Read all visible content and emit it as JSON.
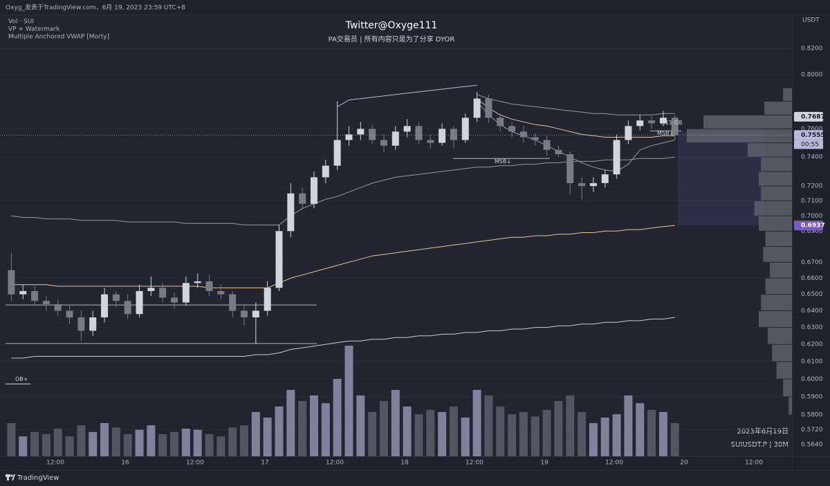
{
  "header": {
    "publisher": "Oxyg_发表于TradingView.com，6月 19, 2023 23:59 UTC+8",
    "currency": "USDT"
  },
  "indicators": [
    "Vol · SUI",
    "VP + Watermark",
    "Multiple Anchored VWAP [Morty]"
  ],
  "watermark": {
    "title": "Twitter@Oxyge111",
    "subtitle": "PA交易员  |  所有内容只是为了分享 DYOR"
  },
  "footer": {
    "brand": "TradingView"
  },
  "chart_data": {
    "type": "candlestick",
    "date": "2023年6月19日",
    "symbol": "SUIUSDT.P  |  30M",
    "log_scale": true,
    "ylim": [
      0.5578,
      0.8472
    ],
    "yticks": [
      {
        "value": 0.82,
        "label": "0.8200"
      },
      {
        "value": 0.8,
        "label": "0.8000"
      },
      {
        "value": 0.76,
        "label": "0.7600"
      },
      {
        "value": 0.74,
        "label": "0.7400"
      },
      {
        "value": 0.72,
        "label": "0.7200"
      },
      {
        "value": 0.71,
        "label": "0.7100"
      },
      {
        "value": 0.7,
        "label": "0.7000"
      },
      {
        "value": 0.69,
        "label": "0.6900"
      },
      {
        "value": 0.67,
        "label": "0.6700"
      },
      {
        "value": 0.66,
        "label": "0.6600"
      },
      {
        "value": 0.65,
        "label": "0.6500"
      },
      {
        "value": 0.64,
        "label": "0.6400"
      },
      {
        "value": 0.63,
        "label": "0.6300"
      },
      {
        "value": 0.62,
        "label": "0.6200"
      },
      {
        "value": 0.61,
        "label": "0.6100"
      },
      {
        "value": 0.6,
        "label": "0.6000"
      },
      {
        "value": 0.59,
        "label": "0.5900"
      },
      {
        "value": 0.58,
        "label": "0.5800"
      },
      {
        "value": 0.572,
        "label": "0.5720"
      },
      {
        "value": 0.564,
        "label": "0.5640"
      }
    ],
    "time_labels": [
      "12:00",
      "16",
      "12:00",
      "17",
      "12:00",
      "18",
      "12:00",
      "19",
      "12:00",
      "20",
      "12:00"
    ],
    "candles": {
      "up_color": "#d1d4dc",
      "down_color": "#787b86",
      "open": [
        0.665,
        0.65,
        0.652,
        0.646,
        0.644,
        0.64,
        0.636,
        0.628,
        0.636,
        0.65,
        0.646,
        0.638,
        0.652,
        0.654,
        0.648,
        0.645,
        0.657,
        0.658,
        0.652,
        0.65,
        0.64,
        0.636,
        0.64,
        0.654,
        0.69,
        0.715,
        0.708,
        0.726,
        0.734,
        0.752,
        0.756,
        0.76,
        0.752,
        0.748,
        0.758,
        0.762,
        0.752,
        0.75,
        0.76,
        0.752,
        0.768,
        0.782,
        0.768,
        0.762,
        0.758,
        0.754,
        0.752,
        0.745,
        0.742,
        0.722,
        0.72,
        0.722,
        0.728,
        0.752,
        0.762,
        0.766,
        0.764,
        0.768
      ],
      "high": [
        0.676,
        0.656,
        0.656,
        0.649,
        0.647,
        0.643,
        0.64,
        0.64,
        0.654,
        0.652,
        0.65,
        0.656,
        0.661,
        0.657,
        0.651,
        0.661,
        0.663,
        0.662,
        0.656,
        0.652,
        0.644,
        0.645,
        0.658,
        0.694,
        0.722,
        0.719,
        0.73,
        0.738,
        0.78,
        0.762,
        0.765,
        0.763,
        0.756,
        0.762,
        0.767,
        0.765,
        0.756,
        0.764,
        0.762,
        0.771,
        0.787,
        0.785,
        0.771,
        0.765,
        0.762,
        0.757,
        0.755,
        0.748,
        0.744,
        0.726,
        0.726,
        0.731,
        0.756,
        0.766,
        0.77,
        0.769,
        0.773,
        0.77
      ],
      "low": [
        0.646,
        0.647,
        0.643,
        0.64,
        0.637,
        0.632,
        0.622,
        0.625,
        0.633,
        0.642,
        0.635,
        0.636,
        0.649,
        0.645,
        0.641,
        0.643,
        0.654,
        0.649,
        0.647,
        0.636,
        0.631,
        0.6205,
        0.637,
        0.652,
        0.686,
        0.704,
        0.705,
        0.722,
        0.731,
        0.748,
        0.752,
        0.749,
        0.743,
        0.745,
        0.754,
        0.749,
        0.746,
        0.748,
        0.746,
        0.75,
        0.765,
        0.764,
        0.758,
        0.754,
        0.75,
        0.748,
        0.741,
        0.74,
        0.714,
        0.711,
        0.716,
        0.719,
        0.725,
        0.749,
        0.759,
        0.76,
        0.762,
        0.752
      ],
      "close": [
        0.65,
        0.652,
        0.646,
        0.644,
        0.64,
        0.636,
        0.628,
        0.636,
        0.65,
        0.646,
        0.638,
        0.652,
        0.654,
        0.648,
        0.645,
        0.657,
        0.658,
        0.652,
        0.65,
        0.64,
        0.636,
        0.64,
        0.654,
        0.69,
        0.715,
        0.708,
        0.726,
        0.734,
        0.752,
        0.756,
        0.76,
        0.752,
        0.748,
        0.758,
        0.762,
        0.752,
        0.75,
        0.76,
        0.752,
        0.768,
        0.782,
        0.768,
        0.762,
        0.758,
        0.754,
        0.752,
        0.745,
        0.742,
        0.722,
        0.72,
        0.722,
        0.728,
        0.752,
        0.762,
        0.766,
        0.764,
        0.768,
        0.7555
      ]
    },
    "volume": {
      "up_color": "#8a8da6",
      "down_color": "#585b68",
      "values": [
        30,
        18,
        22,
        20,
        25,
        18,
        28,
        22,
        30,
        26,
        20,
        24,
        28,
        20,
        22,
        25,
        24,
        20,
        18,
        26,
        28,
        40,
        35,
        45,
        60,
        50,
        55,
        48,
        70,
        100,
        55,
        40,
        50,
        60,
        45,
        38,
        42,
        40,
        45,
        35,
        60,
        55,
        45,
        38,
        40,
        36,
        42,
        50,
        55,
        40,
        30,
        35,
        38,
        55,
        48,
        42,
        40,
        30
      ]
    },
    "lines": [
      {
        "color": "#c9cbd6",
        "values": [
          0.612,
          0.612,
          0.613,
          0.613,
          0.613,
          0.613,
          0.613,
          0.613,
          0.613,
          0.613,
          0.613,
          0.613,
          0.613,
          0.613,
          0.613,
          0.613,
          0.613,
          0.613,
          0.613,
          0.613,
          0.613,
          0.614,
          0.614,
          0.615,
          0.617,
          0.618,
          0.619,
          0.62,
          0.621,
          0.622,
          0.622,
          0.623,
          0.623,
          0.624,
          0.624,
          0.625,
          0.625,
          0.626,
          0.626,
          0.627,
          0.627,
          0.628,
          0.628,
          0.629,
          0.629,
          0.63,
          0.63,
          0.631,
          0.631,
          0.632,
          0.632,
          0.633,
          0.633,
          0.634,
          0.634,
          0.635,
          0.635,
          0.636
        ]
      },
      {
        "color": "#9598a1",
        "values": [
          0.7,
          0.699,
          0.699,
          0.698,
          0.698,
          0.698,
          0.697,
          0.697,
          0.697,
          0.697,
          0.696,
          0.696,
          0.696,
          0.696,
          0.696,
          0.695,
          0.695,
          0.695,
          0.695,
          0.695,
          0.694,
          0.694,
          0.694,
          0.694,
          0.7,
          0.705,
          0.708,
          0.711,
          0.713,
          0.716,
          0.719,
          0.722,
          0.724,
          0.726,
          0.727,
          0.728,
          0.729,
          0.73,
          0.731,
          0.732,
          0.733,
          0.733,
          0.734,
          0.734,
          0.735,
          0.735,
          0.736,
          0.736,
          0.737,
          0.737,
          0.737,
          0.738,
          0.738,
          0.738,
          0.739,
          0.739,
          0.739,
          0.74
        ]
      },
      {
        "color": "#e8c49a",
        "values": [
          0.656,
          0.656,
          0.656,
          0.656,
          0.655,
          0.655,
          0.655,
          0.655,
          0.655,
          0.655,
          0.655,
          0.655,
          0.655,
          0.655,
          0.655,
          0.655,
          0.655,
          0.654,
          0.654,
          0.654,
          0.654,
          0.654,
          0.654,
          0.657,
          0.66,
          0.662,
          0.664,
          0.666,
          0.668,
          0.67,
          0.672,
          0.674,
          0.675,
          0.676,
          0.677,
          0.678,
          0.679,
          0.68,
          0.681,
          0.682,
          0.683,
          0.684,
          0.685,
          0.686,
          0.686,
          0.687,
          0.687,
          0.688,
          0.688,
          0.689,
          0.689,
          0.69,
          0.69,
          0.691,
          0.691,
          0.692,
          0.693,
          0.6937
        ]
      },
      {
        "color": "#e8c49a",
        "values": [
          null,
          null,
          null,
          null,
          null,
          null,
          null,
          null,
          null,
          null,
          null,
          null,
          null,
          null,
          null,
          null,
          null,
          null,
          null,
          null,
          null,
          null,
          null,
          null,
          null,
          null,
          null,
          null,
          null,
          null,
          null,
          null,
          null,
          null,
          null,
          null,
          null,
          null,
          null,
          null,
          0.782,
          0.775,
          0.77,
          0.767,
          0.765,
          0.763,
          0.762,
          0.76,
          0.758,
          0.756,
          0.755,
          0.754,
          0.754,
          0.754,
          0.754,
          0.754,
          0.755,
          0.755
        ]
      },
      {
        "color": "#b8bbd0",
        "values": [
          null,
          null,
          null,
          null,
          null,
          null,
          null,
          null,
          null,
          null,
          null,
          null,
          null,
          null,
          null,
          null,
          null,
          null,
          null,
          null,
          null,
          null,
          null,
          null,
          null,
          null,
          null,
          null,
          0.776,
          0.781,
          0.782,
          0.783,
          0.784,
          0.785,
          0.786,
          0.787,
          0.788,
          0.789,
          0.79,
          0.791,
          0.792,
          null,
          null,
          null,
          null,
          null,
          null,
          null,
          null,
          null,
          null,
          null,
          null,
          null,
          null,
          null,
          null,
          null
        ]
      },
      {
        "color": "#9598a1",
        "values": [
          null,
          null,
          null,
          null,
          null,
          null,
          null,
          null,
          null,
          null,
          null,
          null,
          null,
          null,
          null,
          null,
          null,
          null,
          null,
          null,
          null,
          null,
          null,
          null,
          null,
          null,
          null,
          null,
          null,
          null,
          null,
          null,
          null,
          null,
          null,
          null,
          null,
          null,
          null,
          null,
          0.785,
          0.782,
          0.78,
          0.778,
          0.777,
          0.776,
          0.775,
          0.774,
          0.773,
          0.772,
          0.771,
          0.771,
          0.77,
          0.77,
          0.77,
          0.77,
          0.771,
          0.771
        ]
      },
      {
        "color": "#9598a1",
        "values": [
          null,
          null,
          null,
          null,
          null,
          null,
          null,
          null,
          null,
          null,
          null,
          null,
          null,
          null,
          null,
          null,
          null,
          null,
          null,
          null,
          null,
          null,
          null,
          null,
          null,
          null,
          null,
          null,
          null,
          null,
          null,
          null,
          null,
          null,
          null,
          null,
          null,
          null,
          null,
          null,
          0.78,
          0.77,
          0.763,
          0.758,
          0.755,
          0.752,
          0.748,
          0.744,
          0.74,
          0.736,
          0.733,
          0.731,
          0.73,
          0.735,
          0.745,
          0.748,
          0.75,
          0.752
        ]
      }
    ],
    "levels": [
      {
        "value": 0.6435
      },
      {
        "value": 0.6205
      },
      {
        "value": 0.739
      },
      {
        "value": 0.7585
      }
    ],
    "annotations": [
      {
        "text": "M15 OB",
        "value": 0.7645
      },
      {
        "text": "MSB↓",
        "value": 0.757
      },
      {
        "text": "MSB↓",
        "value": 0.737
      },
      {
        "text": "OB+",
        "value": 0.6
      }
    ],
    "price_labels": [
      {
        "value": 0.7687,
        "color": "#d1d4dc",
        "text_color": "#131722"
      },
      {
        "value": 0.7555,
        "color": "#b9bbdc",
        "text_color": "#131722"
      },
      {
        "value": 0.6937,
        "color": "#7e57c2",
        "text_color": "#ffffff"
      }
    ],
    "countdown": "00:55",
    "value_area": [
      0.6937,
      0.758
    ],
    "profile": {
      "color": "#5d606b",
      "bins": [
        0.58,
        0.59,
        0.6,
        0.61,
        0.62,
        0.63,
        0.64,
        0.65,
        0.66,
        0.67,
        0.68,
        0.69,
        0.7,
        0.71,
        0.72,
        0.73,
        0.74,
        0.75,
        0.76,
        0.77,
        0.78,
        0.79
      ],
      "values": [
        3,
        8,
        14,
        18,
        22,
        30,
        28,
        24,
        20,
        26,
        24,
        30,
        34,
        28,
        30,
        28,
        40,
        95,
        80,
        25,
        8
      ]
    }
  }
}
